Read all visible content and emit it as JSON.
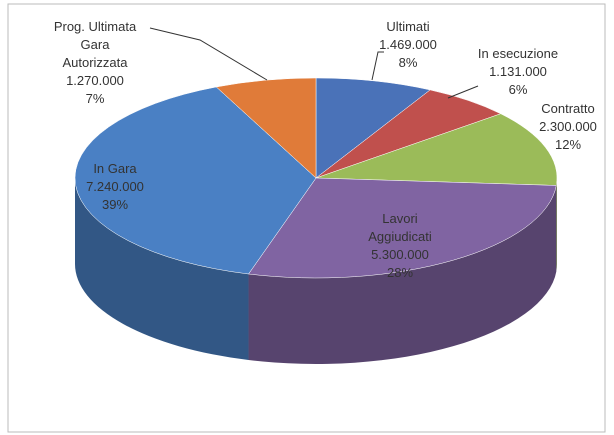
{
  "chart_data": {
    "type": "pie3d",
    "categories": [
      "Ultimati",
      "In esecuzione",
      "Contratto",
      "Lavori Aggiudicati",
      "In Gara",
      "Prog. Ultimata Gara Autorizzata"
    ],
    "values": [
      1469000,
      1131000,
      2300000,
      5300000,
      7240000,
      1270000
    ],
    "value_labels": [
      "1.469.000",
      "1.131.000",
      "2.300.000",
      "5.300.000",
      "7.240.000",
      "1.270.000"
    ],
    "percents": [
      8,
      6,
      12,
      28,
      39,
      7
    ],
    "percent_labels": [
      "8%",
      "6%",
      "12%",
      "28%",
      "39%",
      "7%"
    ],
    "colors": [
      "#4a72b8",
      "#c0504d",
      "#9bbb59",
      "#8064a2",
      "#4a80c4",
      "#e07b39"
    ]
  }
}
